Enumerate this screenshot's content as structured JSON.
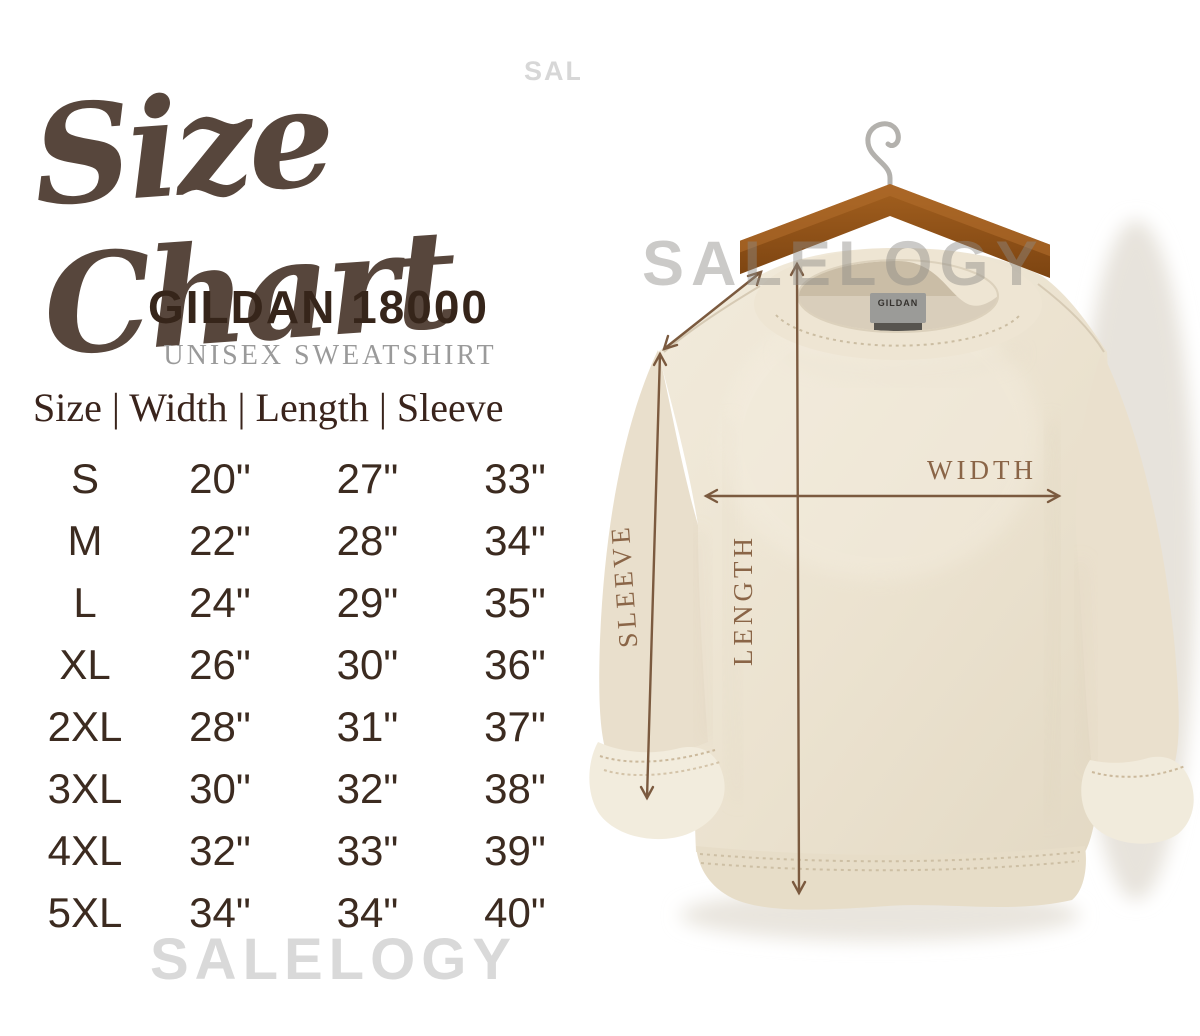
{
  "header": {
    "title": "Size Chart",
    "product": "GILDAN 18000",
    "subtitle": "UNISEX SWEATSHIRT"
  },
  "watermarks": {
    "top": "SALELOGY",
    "middle": "SALELOGY",
    "bottom": "SALELOGY"
  },
  "table": {
    "header_display": "Size | Width | Length | Sleeve",
    "columns": [
      "Size",
      "Width",
      "Length",
      "Sleeve"
    ],
    "rows": [
      {
        "size": "S",
        "width": "20\"",
        "length": "27\"",
        "sleeve": "33\""
      },
      {
        "size": "M",
        "width": "22\"",
        "length": "28\"",
        "sleeve": "34\""
      },
      {
        "size": "L",
        "width": "24\"",
        "length": "29\"",
        "sleeve": "35\""
      },
      {
        "size": "XL",
        "width": "26\"",
        "length": "30\"",
        "sleeve": "36\""
      },
      {
        "size": "2XL",
        "width": "28\"",
        "length": "31\"",
        "sleeve": "37\""
      },
      {
        "size": "3XL",
        "width": "30\"",
        "length": "32\"",
        "sleeve": "38\""
      },
      {
        "size": "4XL",
        "width": "32\"",
        "length": "33\"",
        "sleeve": "39\""
      },
      {
        "size": "5XL",
        "width": "34\"",
        "length": "34\"",
        "sleeve": "40\""
      }
    ]
  },
  "photo": {
    "measure_labels": {
      "width": "WIDTH",
      "length": "LENGTH",
      "sleeve": "SLEEVE"
    },
    "neck_tag": "GILDAN",
    "colors": {
      "title_brown": "#57463c",
      "heading_brown": "#36251a",
      "table_text_brown": "#3c2b20",
      "arrow_brown": "#7b5a3f",
      "label_brown": "#8a6547",
      "watermark_gray": "#d9d9d9",
      "sweatshirt_cream": "#ece3d1",
      "hanger_wood": "#8d4f22"
    }
  },
  "chart_data": {
    "type": "table",
    "title": "Size Chart — Gildan 18000 Unisex Sweatshirt",
    "columns": [
      "Size",
      "Width",
      "Length",
      "Sleeve"
    ],
    "rows": [
      [
        "S",
        "20\"",
        "27\"",
        "33\""
      ],
      [
        "M",
        "22\"",
        "28\"",
        "34\""
      ],
      [
        "L",
        "24\"",
        "29\"",
        "35\""
      ],
      [
        "XL",
        "26\"",
        "30\"",
        "36\""
      ],
      [
        "2XL",
        "28\"",
        "31\"",
        "37\""
      ],
      [
        "3XL",
        "30\"",
        "32\"",
        "38\""
      ],
      [
        "4XL",
        "32\"",
        "33\"",
        "39\""
      ],
      [
        "5XL",
        "34\"",
        "34\"",
        "40\""
      ]
    ]
  }
}
